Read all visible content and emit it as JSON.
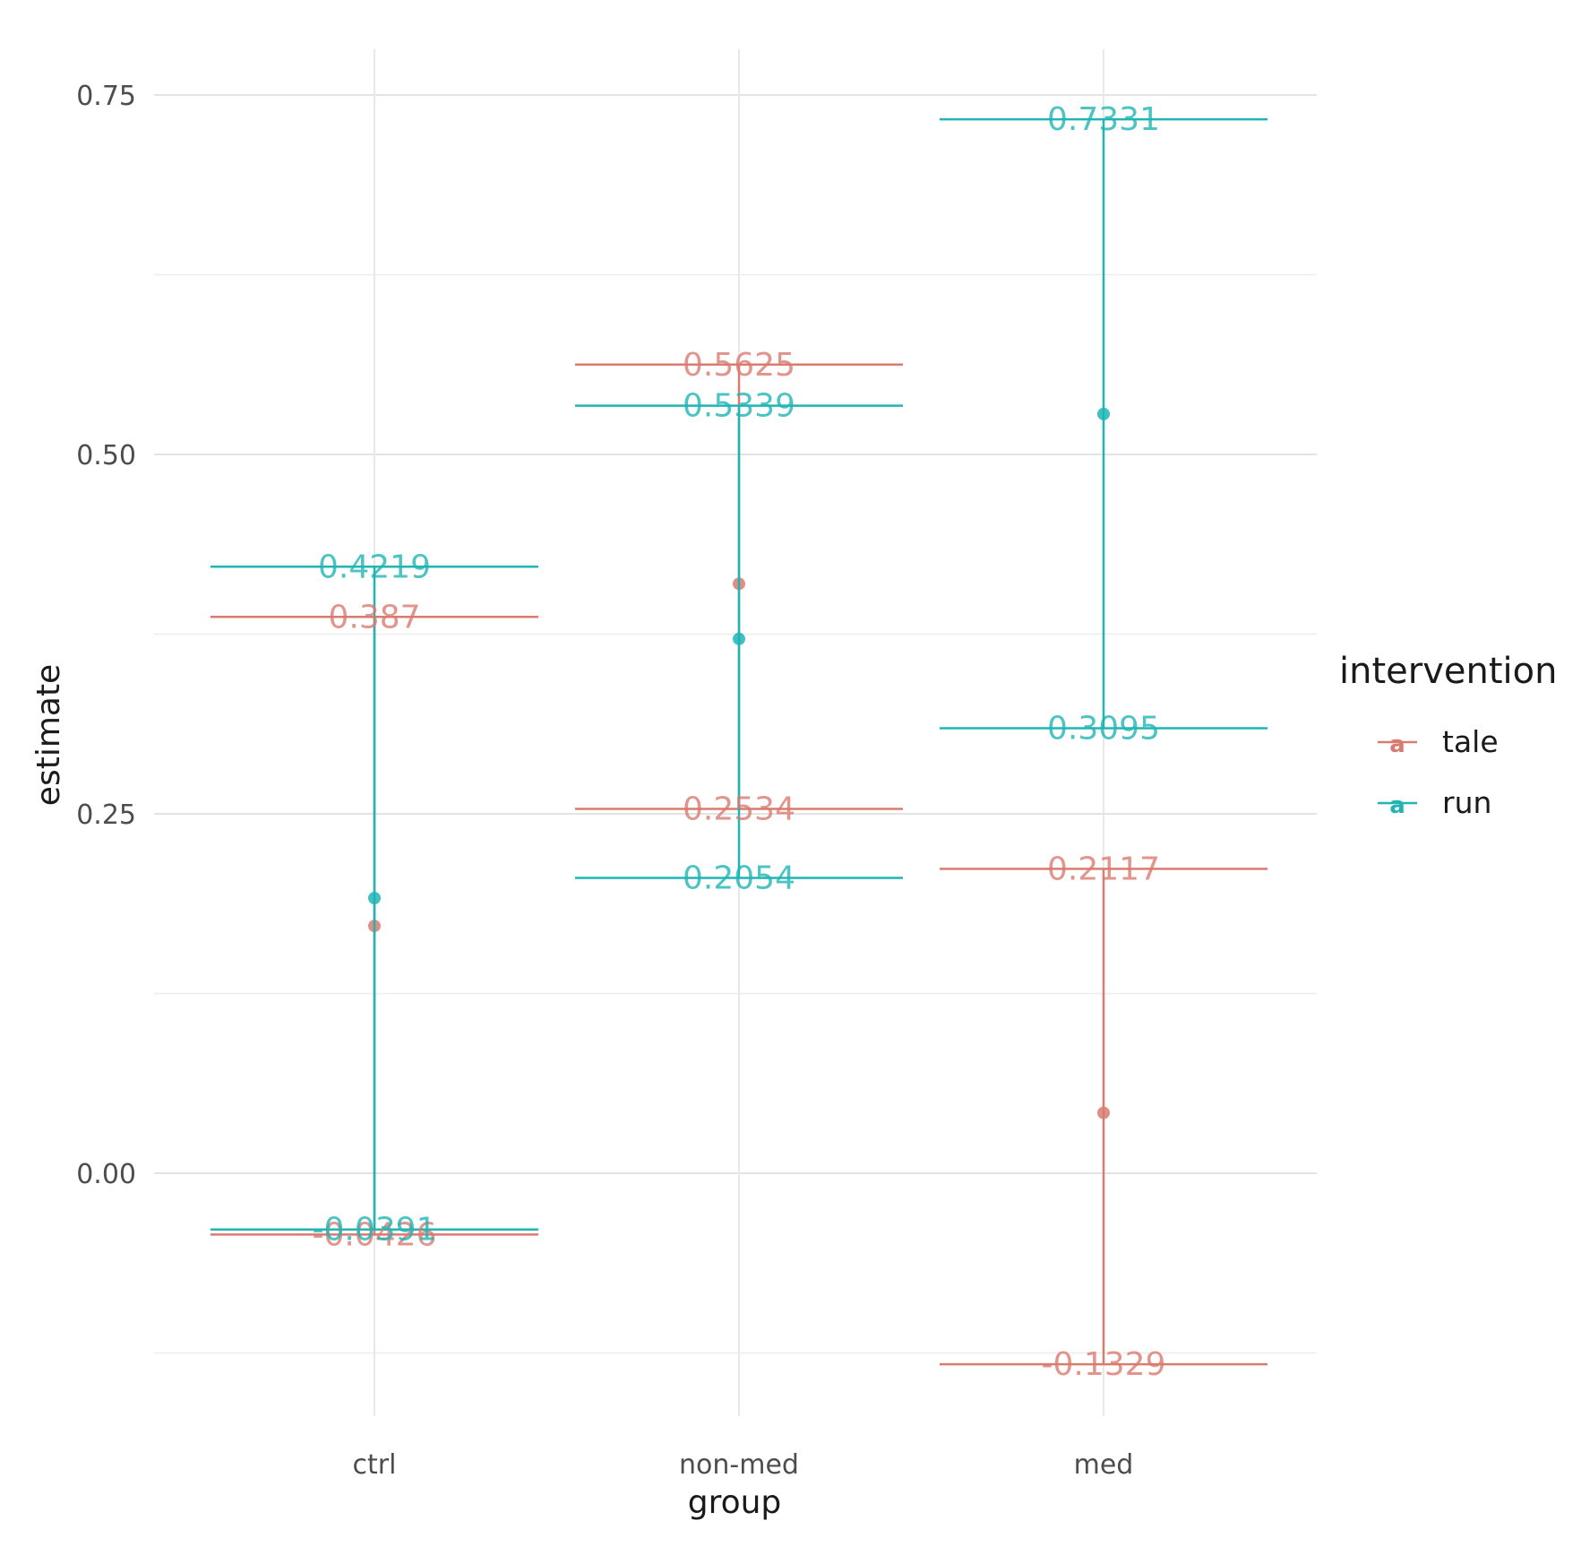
{
  "chart_data": {
    "type": "errorbar",
    "xlabel": "group",
    "ylabel": "estimate",
    "categories": [
      "ctrl",
      "non-med",
      "med"
    ],
    "yticks": [
      0.0,
      0.25,
      0.5,
      0.75
    ],
    "ytick_labels": [
      "0.00",
      "0.25",
      "0.50",
      "0.75"
    ],
    "ylim": [
      -0.175,
      0.79
    ],
    "legend": {
      "title": "intervention",
      "position": "right",
      "key_glyph": "a"
    },
    "series": [
      {
        "name": "tale",
        "color": "#d97b6f",
        "estimates": [
          0.172,
          0.41,
          0.042
        ],
        "upper": [
          0.387,
          0.5625,
          0.2117
        ],
        "lower": [
          -0.0426,
          0.2534,
          -0.1329
        ],
        "upper_labels": [
          "0.387",
          "0.5625",
          "0.2117"
        ],
        "lower_labels": [
          "-0.0426",
          "0.2534",
          "-0.1329"
        ]
      },
      {
        "name": "run",
        "color": "#1fb5b5",
        "estimates": [
          0.1914,
          0.3717,
          0.5281
        ],
        "upper": [
          0.4219,
          0.5339,
          0.7331
        ],
        "lower": [
          -0.0391,
          0.2054,
          0.3095
        ],
        "upper_labels": [
          "0.4219",
          "0.5339",
          "0.7331"
        ],
        "lower_labels": [
          "-0.0391",
          "0.2054",
          "0.3095"
        ]
      }
    ]
  }
}
